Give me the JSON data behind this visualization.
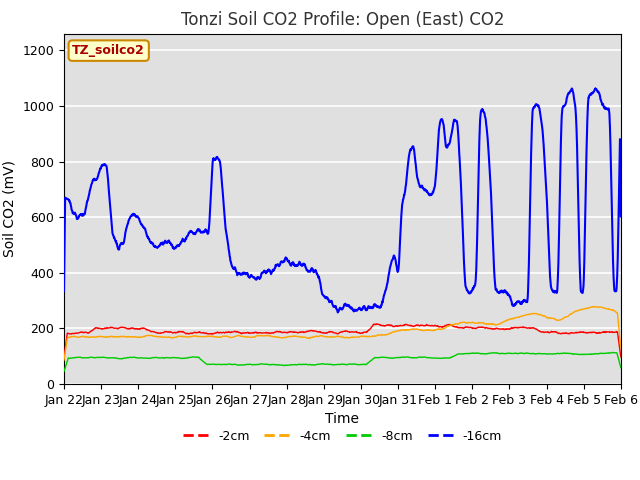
{
  "title": "Tonzi Soil CO2 Profile: Open (East) CO2",
  "xlabel": "Time",
  "ylabel": "Soil CO2 (mV)",
  "ylim": [
    0,
    1260
  ],
  "yticks": [
    0,
    200,
    400,
    600,
    800,
    1000,
    1200
  ],
  "x_labels": [
    "Jan 22",
    "Jan 23",
    "Jan 24",
    "Jan 25",
    "Jan 26",
    "Jan 27",
    "Jan 28",
    "Jan 29",
    "Jan 30",
    "Jan 31",
    "Feb 1",
    "Feb 2",
    "Feb 3",
    "Feb 4",
    "Feb 5",
    "Feb 6"
  ],
  "legend_label": "TZ_soilco2",
  "series_labels": [
    "-2cm",
    "-4cm",
    "-8cm",
    "-16cm"
  ],
  "series_colors": [
    "#ff0000",
    "#ffa500",
    "#00cc00",
    "#0000ff"
  ],
  "plot_bg": "#e0e0e0",
  "title_fontsize": 12,
  "axis_fontsize": 10,
  "tick_fontsize": 9,
  "blue_t_pts": [
    0,
    0.15,
    0.35,
    0.55,
    0.75,
    0.9,
    1.0,
    1.15,
    1.3,
    1.45,
    1.6,
    1.75,
    1.9,
    2.0,
    2.1,
    2.2,
    2.35,
    2.5,
    2.65,
    2.8,
    3.0,
    3.1,
    3.2,
    3.3,
    3.4,
    3.5,
    3.6,
    3.7,
    3.8,
    3.9,
    4.0,
    4.1,
    4.2,
    4.35,
    4.5,
    4.65,
    4.8,
    5.0,
    5.2,
    5.4,
    5.6,
    5.8,
    6.0,
    6.2,
    6.4,
    6.6,
    6.8,
    7.0,
    7.1,
    7.2,
    7.3,
    7.4,
    7.5,
    7.6,
    7.7,
    7.8,
    7.9,
    8.0,
    8.1,
    8.2,
    8.3,
    8.4,
    8.5,
    8.6,
    8.7,
    8.8,
    8.9,
    9.0,
    9.1,
    9.2,
    9.3,
    9.4,
    9.5,
    9.6,
    9.7,
    9.8,
    9.9,
    10.0,
    10.1,
    10.2,
    10.3,
    10.4,
    10.5,
    10.6,
    10.7,
    10.8,
    10.9,
    11.0,
    11.1,
    11.2,
    11.3,
    11.4,
    11.5,
    11.6,
    11.7,
    11.8,
    11.9,
    12.0,
    12.1,
    12.2,
    12.3,
    12.4,
    12.5,
    12.6,
    12.7,
    12.8,
    12.9,
    13.0,
    13.1,
    13.2,
    13.3,
    13.4,
    13.5,
    13.6,
    13.7,
    13.8,
    13.9,
    14.0,
    14.1,
    14.2,
    14.3,
    14.4,
    14.5,
    14.6,
    14.7,
    14.8,
    14.9,
    15.0
  ],
  "blue_v_pts": [
    680,
    650,
    590,
    610,
    730,
    740,
    785,
    790,
    540,
    490,
    510,
    600,
    610,
    595,
    570,
    550,
    500,
    490,
    510,
    510,
    490,
    500,
    520,
    530,
    560,
    540,
    560,
    540,
    550,
    540,
    810,
    820,
    800,
    560,
    430,
    400,
    400,
    390,
    380,
    400,
    410,
    430,
    450,
    430,
    430,
    410,
    410,
    310,
    310,
    290,
    270,
    265,
    270,
    280,
    280,
    270,
    265,
    270,
    270,
    275,
    280,
    285,
    270,
    310,
    360,
    430,
    470,
    380,
    650,
    700,
    840,
    860,
    750,
    700,
    710,
    690,
    680,
    700,
    940,
    950,
    840,
    870,
    950,
    940,
    700,
    340,
    330,
    340,
    360,
    980,
    990,
    910,
    700,
    340,
    330,
    340,
    330,
    320,
    285,
    290,
    295,
    300,
    290,
    980,
    1000,
    1000,
    900,
    680,
    340,
    330,
    320,
    990,
    1010,
    1050,
    1060,
    970,
    340,
    330,
    1020,
    1050,
    1060,
    1050,
    1000,
    990,
    980,
    340,
    335,
    1060
  ]
}
